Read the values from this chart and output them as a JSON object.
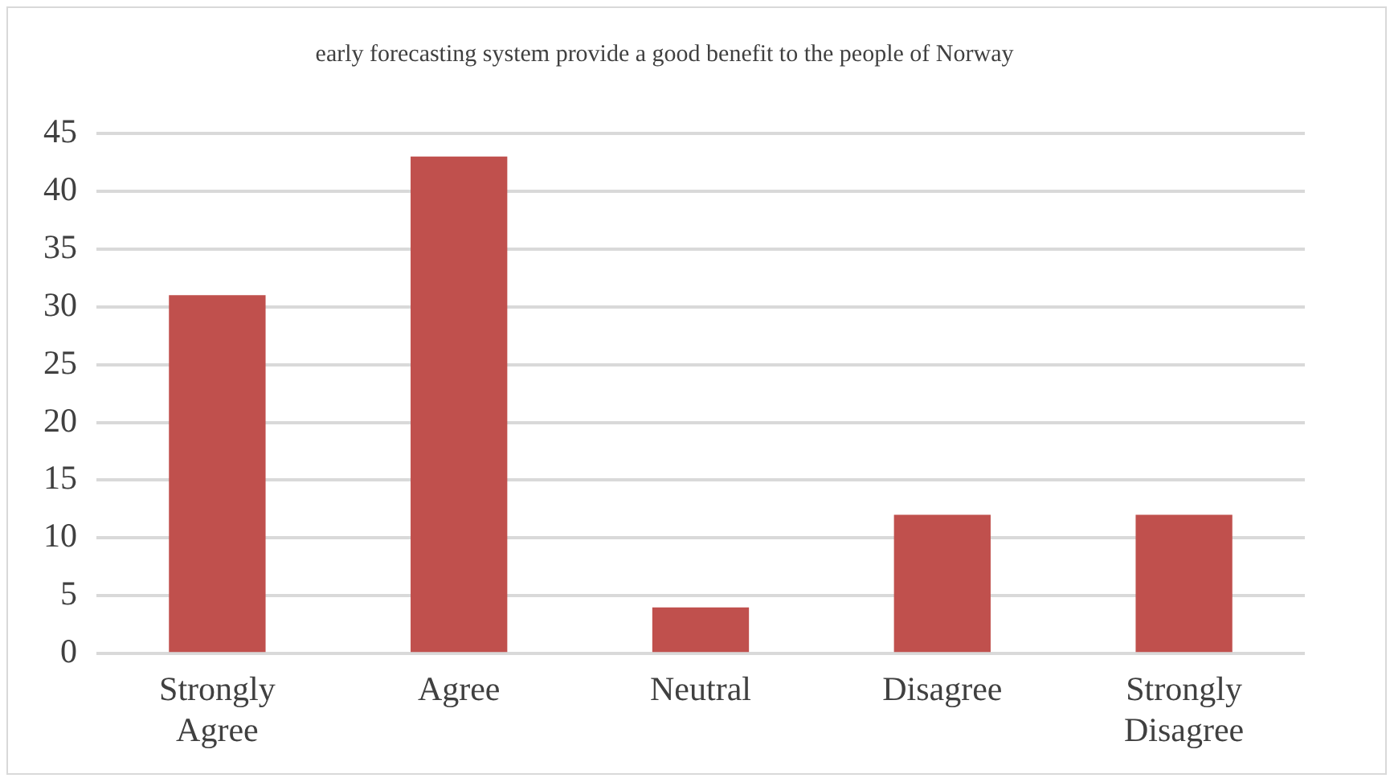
{
  "chart_data": {
    "type": "bar",
    "title": "early forecasting system provide a good benefit to the people of Norway",
    "categories": [
      "Strongly Agree",
      "Agree",
      "Neutral",
      "Disagree",
      "Strongly Disagree"
    ],
    "values": [
      31,
      43,
      4,
      12,
      12
    ],
    "color": "#c0504d",
    "ylim": [
      0,
      45
    ],
    "yticks": [
      0,
      5,
      10,
      15,
      20,
      25,
      30,
      35,
      40,
      45
    ],
    "grid": "y",
    "legend": false
  }
}
